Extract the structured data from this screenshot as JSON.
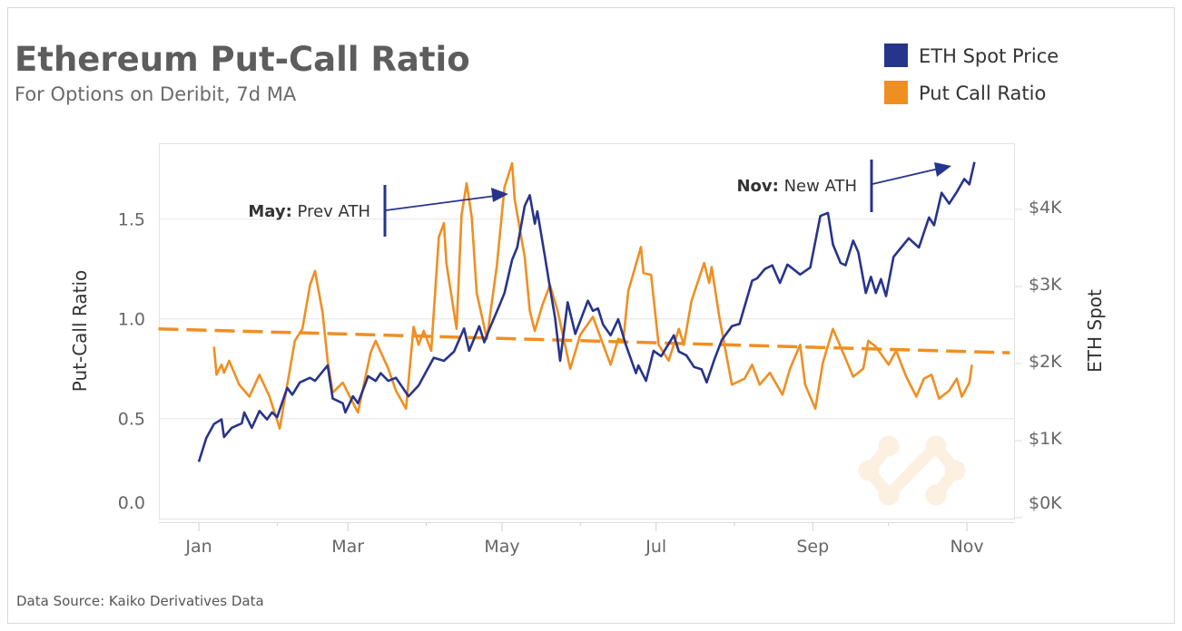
{
  "header": {
    "title": "Ethereum Put-Call Ratio",
    "subtitle": "For Options on Deribit, 7d MA"
  },
  "legend": [
    {
      "label": "ETH Spot Price",
      "color": "#27348b"
    },
    {
      "label": "Put Call Ratio",
      "color": "#ef8f22"
    }
  ],
  "footer": {
    "source": "Data Source: Kaiko Derivatives Data"
  },
  "watermark": {
    "logo": "kaiko-logo"
  },
  "chart_data": {
    "type": "line",
    "title": "Ethereum Put-Call Ratio",
    "subtitle": "For Options on Deribit, 7d MA",
    "legend_position": "top-right",
    "grid": true,
    "x_axis": {
      "type": "date",
      "tick_labels": [
        "Jan",
        "Mar",
        "May",
        "Jul",
        "Sep",
        "Nov"
      ],
      "range": [
        "2020-12-16",
        "2021-11-18"
      ]
    },
    "y_axis_left": {
      "label": "Put-Call Ratio",
      "tick_labels": [
        "0.0",
        "0.5",
        "1.0",
        "1.5"
      ],
      "range": [
        0,
        1.88
      ]
    },
    "y_axis_right": {
      "label": "ETH Spot",
      "tick_labels": [
        "$0K",
        "$1K",
        "$2K",
        "$3K",
        "$4K"
      ],
      "range": [
        0,
        4700
      ]
    },
    "series": [
      {
        "name": "ETH Spot Price",
        "axis": "right",
        "color": "#27348b",
        "points": [
          [
            "2021-01-01",
            690
          ],
          [
            "2021-01-04",
            1000
          ],
          [
            "2021-01-07",
            1180
          ],
          [
            "2021-01-10",
            1240
          ],
          [
            "2021-01-11",
            1010
          ],
          [
            "2021-01-14",
            1130
          ],
          [
            "2021-01-18",
            1190
          ],
          [
            "2021-01-19",
            1330
          ],
          [
            "2021-01-22",
            1130
          ],
          [
            "2021-01-25",
            1350
          ],
          [
            "2021-01-28",
            1240
          ],
          [
            "2021-01-30",
            1330
          ],
          [
            "2021-02-01",
            1270
          ],
          [
            "2021-02-05",
            1650
          ],
          [
            "2021-02-07",
            1560
          ],
          [
            "2021-02-10",
            1720
          ],
          [
            "2021-02-14",
            1780
          ],
          [
            "2021-02-16",
            1740
          ],
          [
            "2021-02-21",
            1940
          ],
          [
            "2021-02-23",
            1510
          ],
          [
            "2021-02-27",
            1450
          ],
          [
            "2021-02-28",
            1330
          ],
          [
            "2021-03-03",
            1540
          ],
          [
            "2021-03-05",
            1450
          ],
          [
            "2021-03-09",
            1800
          ],
          [
            "2021-03-12",
            1740
          ],
          [
            "2021-03-14",
            1840
          ],
          [
            "2021-03-17",
            1740
          ],
          [
            "2021-03-20",
            1780
          ],
          [
            "2021-03-25",
            1540
          ],
          [
            "2021-03-29",
            1680
          ],
          [
            "2021-04-04",
            2040
          ],
          [
            "2021-04-08",
            2000
          ],
          [
            "2021-04-12",
            2120
          ],
          [
            "2021-04-16",
            2420
          ],
          [
            "2021-04-18",
            2130
          ],
          [
            "2021-04-22",
            2450
          ],
          [
            "2021-04-24",
            2240
          ],
          [
            "2021-04-26",
            2410
          ],
          [
            "2021-04-30",
            2720
          ],
          [
            "2021-05-02",
            2880
          ],
          [
            "2021-05-05",
            3310
          ],
          [
            "2021-05-07",
            3470
          ],
          [
            "2021-05-10",
            4010
          ],
          [
            "2021-05-12",
            4150
          ],
          [
            "2021-05-14",
            3780
          ],
          [
            "2021-05-15",
            3940
          ],
          [
            "2021-05-18",
            3350
          ],
          [
            "2021-05-20",
            2950
          ],
          [
            "2021-05-22",
            2560
          ],
          [
            "2021-05-24",
            2000
          ],
          [
            "2021-05-27",
            2760
          ],
          [
            "2021-05-30",
            2350
          ],
          [
            "2021-06-04",
            2780
          ],
          [
            "2021-06-06",
            2650
          ],
          [
            "2021-06-08",
            2680
          ],
          [
            "2021-06-10",
            2470
          ],
          [
            "2021-06-13",
            2330
          ],
          [
            "2021-06-16",
            2540
          ],
          [
            "2021-06-19",
            2210
          ],
          [
            "2021-06-23",
            1840
          ],
          [
            "2021-06-24",
            1940
          ],
          [
            "2021-06-27",
            1740
          ],
          [
            "2021-06-30",
            2130
          ],
          [
            "2021-07-03",
            2060
          ],
          [
            "2021-07-08",
            2330
          ],
          [
            "2021-07-10",
            2120
          ],
          [
            "2021-07-13",
            2070
          ],
          [
            "2021-07-16",
            1920
          ],
          [
            "2021-07-19",
            1890
          ],
          [
            "2021-07-21",
            1720
          ],
          [
            "2021-07-24",
            2010
          ],
          [
            "2021-07-27",
            2270
          ],
          [
            "2021-07-31",
            2450
          ],
          [
            "2021-08-03",
            2480
          ],
          [
            "2021-08-08",
            3040
          ],
          [
            "2021-08-10",
            3070
          ],
          [
            "2021-08-13",
            3190
          ],
          [
            "2021-08-16",
            3240
          ],
          [
            "2021-08-19",
            3010
          ],
          [
            "2021-08-22",
            3250
          ],
          [
            "2021-08-27",
            3120
          ],
          [
            "2021-08-31",
            3210
          ],
          [
            "2021-09-04",
            3880
          ],
          [
            "2021-09-07",
            3920
          ],
          [
            "2021-09-09",
            3510
          ],
          [
            "2021-09-12",
            3270
          ],
          [
            "2021-09-14",
            3240
          ],
          [
            "2021-09-17",
            3560
          ],
          [
            "2021-09-19",
            3410
          ],
          [
            "2021-09-22",
            2880
          ],
          [
            "2021-09-24",
            3090
          ],
          [
            "2021-09-26",
            2880
          ],
          [
            "2021-09-28",
            3060
          ],
          [
            "2021-09-30",
            2840
          ],
          [
            "2021-10-03",
            3350
          ],
          [
            "2021-10-06",
            3470
          ],
          [
            "2021-10-09",
            3590
          ],
          [
            "2021-10-13",
            3470
          ],
          [
            "2021-10-17",
            3860
          ],
          [
            "2021-10-19",
            3760
          ],
          [
            "2021-10-22",
            4180
          ],
          [
            "2021-10-25",
            4040
          ],
          [
            "2021-10-28",
            4190
          ],
          [
            "2021-10-31",
            4360
          ],
          [
            "2021-11-02",
            4290
          ],
          [
            "2021-11-04",
            4580
          ]
        ]
      },
      {
        "name": "Put Call Ratio",
        "axis": "left",
        "color": "#ef8f22",
        "points": [
          [
            "2021-01-07",
            0.86
          ],
          [
            "2021-01-08",
            0.72
          ],
          [
            "2021-01-10",
            0.77
          ],
          [
            "2021-01-11",
            0.73
          ],
          [
            "2021-01-13",
            0.79
          ],
          [
            "2021-01-17",
            0.67
          ],
          [
            "2021-01-21",
            0.61
          ],
          [
            "2021-01-25",
            0.72
          ],
          [
            "2021-01-29",
            0.61
          ],
          [
            "2021-02-02",
            0.45
          ],
          [
            "2021-02-05",
            0.67
          ],
          [
            "2021-02-08",
            0.89
          ],
          [
            "2021-02-11",
            0.95
          ],
          [
            "2021-02-14",
            1.17
          ],
          [
            "2021-02-16",
            1.24
          ],
          [
            "2021-02-19",
            1.03
          ],
          [
            "2021-02-21",
            0.79
          ],
          [
            "2021-02-23",
            0.63
          ],
          [
            "2021-02-27",
            0.68
          ],
          [
            "2021-03-05",
            0.53
          ],
          [
            "2021-03-10",
            0.83
          ],
          [
            "2021-03-12",
            0.89
          ],
          [
            "2021-03-17",
            0.75
          ],
          [
            "2021-03-20",
            0.64
          ],
          [
            "2021-03-24",
            0.55
          ],
          [
            "2021-03-27",
            0.96
          ],
          [
            "2021-03-29",
            0.87
          ],
          [
            "2021-03-31",
            0.94
          ],
          [
            "2021-04-03",
            0.84
          ],
          [
            "2021-04-06",
            1.41
          ],
          [
            "2021-04-08",
            1.48
          ],
          [
            "2021-04-09",
            1.28
          ],
          [
            "2021-04-13",
            0.95
          ],
          [
            "2021-04-15",
            1.52
          ],
          [
            "2021-04-17",
            1.68
          ],
          [
            "2021-04-19",
            1.51
          ],
          [
            "2021-04-21",
            1.13
          ],
          [
            "2021-04-25",
            0.9
          ],
          [
            "2021-04-29",
            1.27
          ],
          [
            "2021-05-02",
            1.66
          ],
          [
            "2021-05-05",
            1.78
          ],
          [
            "2021-05-06",
            1.6
          ],
          [
            "2021-05-10",
            1.31
          ],
          [
            "2021-05-12",
            1.04
          ],
          [
            "2021-05-14",
            0.94
          ],
          [
            "2021-05-17",
            1.07
          ],
          [
            "2021-05-20",
            1.17
          ],
          [
            "2021-05-23",
            1.04
          ],
          [
            "2021-05-28",
            0.75
          ],
          [
            "2021-06-01",
            0.92
          ],
          [
            "2021-06-06",
            1.01
          ],
          [
            "2021-06-13",
            0.77
          ],
          [
            "2021-06-16",
            0.9
          ],
          [
            "2021-06-18",
            0.89
          ],
          [
            "2021-06-20",
            1.14
          ],
          [
            "2021-06-25",
            1.36
          ],
          [
            "2021-06-26",
            1.23
          ],
          [
            "2021-06-29",
            1.22
          ],
          [
            "2021-07-02",
            0.87
          ],
          [
            "2021-07-06",
            0.79
          ],
          [
            "2021-07-10",
            0.95
          ],
          [
            "2021-07-12",
            0.87
          ],
          [
            "2021-07-15",
            1.09
          ],
          [
            "2021-07-20",
            1.28
          ],
          [
            "2021-07-22",
            1.18
          ],
          [
            "2021-07-23",
            1.26
          ],
          [
            "2021-07-26",
            1.01
          ],
          [
            "2021-07-31",
            0.67
          ],
          [
            "2021-08-05",
            0.7
          ],
          [
            "2021-08-08",
            0.77
          ],
          [
            "2021-08-11",
            0.67
          ],
          [
            "2021-08-15",
            0.73
          ],
          [
            "2021-08-20",
            0.62
          ],
          [
            "2021-08-23",
            0.75
          ],
          [
            "2021-08-27",
            0.87
          ],
          [
            "2021-08-29",
            0.67
          ],
          [
            "2021-09-02",
            0.55
          ],
          [
            "2021-09-05",
            0.78
          ],
          [
            "2021-09-09",
            0.95
          ],
          [
            "2021-09-13",
            0.83
          ],
          [
            "2021-09-17",
            0.71
          ],
          [
            "2021-09-21",
            0.75
          ],
          [
            "2021-09-23",
            0.89
          ],
          [
            "2021-09-26",
            0.86
          ],
          [
            "2021-10-01",
            0.77
          ],
          [
            "2021-10-04",
            0.84
          ],
          [
            "2021-10-08",
            0.71
          ],
          [
            "2021-10-12",
            0.61
          ],
          [
            "2021-10-15",
            0.7
          ],
          [
            "2021-10-18",
            0.72
          ],
          [
            "2021-10-21",
            0.6
          ],
          [
            "2021-10-25",
            0.64
          ],
          [
            "2021-10-28",
            0.7
          ],
          [
            "2021-10-30",
            0.61
          ],
          [
            "2021-11-02",
            0.68
          ],
          [
            "2021-11-03",
            0.77
          ]
        ]
      },
      {
        "axis": "left",
        "style": "dashed",
        "color": "#ef8f22",
        "points": [
          [
            "2020-12-16",
            0.95
          ],
          [
            "2021-11-18",
            0.83
          ]
        ]
      }
    ],
    "annotations": [
      {
        "bold": "May:",
        "text": " Prev ATH"
      },
      {
        "bold": "Nov:",
        "text": " New ATH"
      }
    ]
  }
}
